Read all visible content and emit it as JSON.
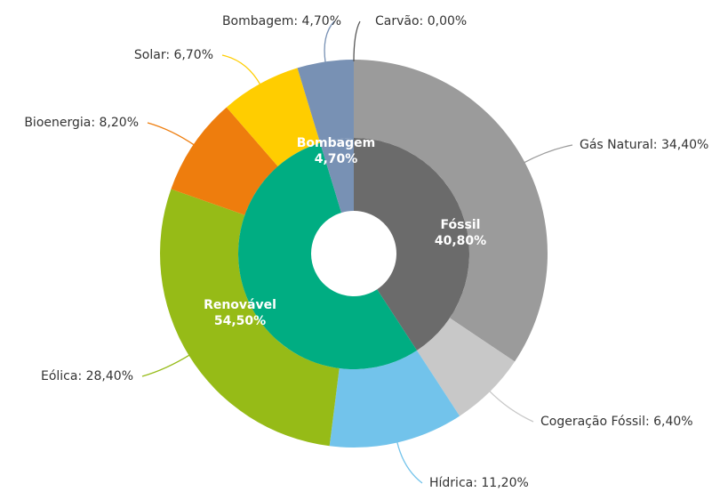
{
  "chart_data": {
    "type": "sunburst",
    "inner": {
      "categories": [
        "Fóssil",
        "Renovável",
        "Bombagem"
      ],
      "values": [
        40.8,
        54.5,
        4.7
      ],
      "value_labels": [
        "40,80%",
        "54,50%",
        "4,70%"
      ],
      "colors": [
        "#6b6b6b",
        "#00ad82",
        "#7891b4"
      ]
    },
    "outer": {
      "labels": [
        "Carvão: 0,00%",
        "Gás Natural: 34,40%",
        "Cogeração Fóssil: 6,40%",
        "Hídrica: 11,20%",
        "Eólica: 28,40%",
        "Bioenergia: 8,20%",
        "Solar: 6,70%",
        "Bombagem: 4,70%"
      ],
      "values": [
        0,
        34.4,
        6.4,
        11.2,
        28.4,
        8.2,
        6.7,
        4.7
      ],
      "colors": [
        "#555555",
        "#9b9b9b",
        "#c8c8c8",
        "#72c3eb",
        "#96bb17",
        "#ee7d0d",
        "#ffcd00",
        "#7891b4"
      ]
    }
  }
}
